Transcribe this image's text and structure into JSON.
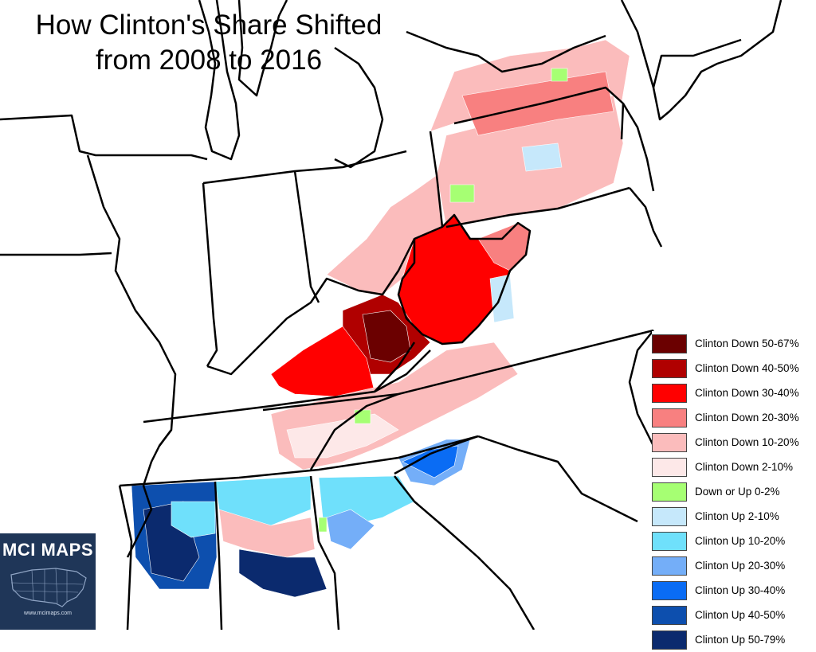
{
  "title": "How Clinton's Share Shifted\nfrom 2008 to 2016",
  "legend": [
    {
      "label": "Clinton Down 50-67%",
      "color": "#6b0000"
    },
    {
      "label": "Clinton Down 40-50%",
      "color": "#b00000"
    },
    {
      "label": "Clinton Down 30-40%",
      "color": "#ff0000"
    },
    {
      "label": "Clinton Down 20-30%",
      "color": "#f88080"
    },
    {
      "label": "Clinton Down 10-20%",
      "color": "#fbbcbc"
    },
    {
      "label": "Clinton Down 2-10%",
      "color": "#fde8e8"
    },
    {
      "label": "Down or Up 0-2%",
      "color": "#a6ff73"
    },
    {
      "label": "Clinton Up 2-10%",
      "color": "#c6e8fb"
    },
    {
      "label": "Clinton Up 10-20%",
      "color": "#6fe0fb"
    },
    {
      "label": "Clinton Up 20-30%",
      "color": "#74aef8"
    },
    {
      "label": "Clinton Up 30-40%",
      "color": "#0a6cf4"
    },
    {
      "label": "Clinton Up 40-50%",
      "color": "#0d4fae"
    },
    {
      "label": "Clinton Up 50-79%",
      "color": "#0b2a6e"
    }
  ],
  "logo": {
    "title": "MCI MAPS",
    "url": "www.mcimaps.com"
  }
}
